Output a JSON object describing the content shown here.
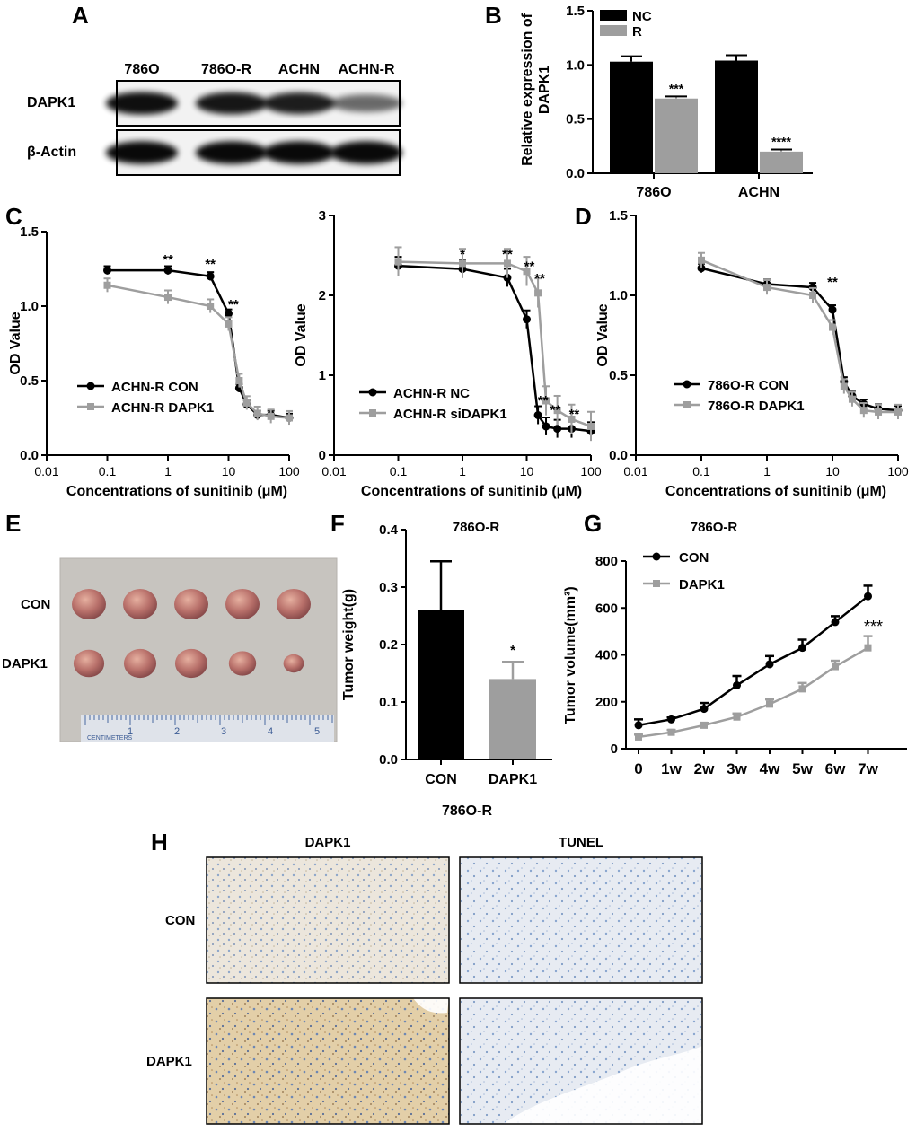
{
  "panels": {
    "A": "A",
    "B": "B",
    "C": "C",
    "D": "D",
    "E": "E",
    "F": "F",
    "G": "G",
    "H": "H"
  },
  "western_blot": {
    "lanes": [
      "786O",
      "786O-R",
      "ACHN",
      "ACHN-R"
    ],
    "rows": [
      {
        "label": "DAPK1",
        "intensity": [
          0.92,
          0.88,
          0.85,
          0.45
        ]
      },
      {
        "label": "β-Actin",
        "intensity": [
          0.95,
          0.95,
          0.95,
          0.95
        ]
      }
    ]
  },
  "tumor_photo": {
    "rows": [
      "CON",
      "DAPK1"
    ],
    "ruler_ticks": [
      "1",
      "2",
      "3",
      "4",
      "5"
    ],
    "ruler_label": "CENTIMETERS",
    "sizes": [
      [
        1.0,
        1.0,
        1.0,
        1.0,
        1.0
      ],
      [
        0.9,
        0.95,
        0.95,
        0.8,
        0.6
      ]
    ]
  },
  "ihc": {
    "title": "786O-R",
    "columns": [
      "DAPK1",
      "TUNEL"
    ],
    "rows": [
      "CON",
      "DAPK1"
    ],
    "stain_colors": {
      "brown": "#c9a46a",
      "blue": "#7f9fc8",
      "background": "#ece7dc"
    }
  },
  "colors": {
    "black": "#000000",
    "gray": "#9e9e9e"
  },
  "chart_data": [
    {
      "id": "B",
      "type": "bar",
      "categories": [
        "786O",
        "ACHN"
      ],
      "series": [
        {
          "name": "NC",
          "values": [
            1.03,
            1.04
          ],
          "errors": [
            0.05,
            0.05
          ],
          "color": "#000000"
        },
        {
          "name": "R",
          "values": [
            0.69,
            0.2
          ],
          "errors": [
            0.02,
            0.02
          ],
          "color": "#9e9e9e"
        }
      ],
      "annotations": [
        {
          "category": "786O",
          "series": "R",
          "text": "***"
        },
        {
          "category": "ACHN",
          "series": "R",
          "text": "****"
        }
      ],
      "ylabel": "Relative expression of DAPK1",
      "ylabel_lines": [
        "Relative expression of",
        "DAPK1"
      ],
      "ylim": [
        0,
        1.5
      ],
      "yticks": [
        0,
        0.5,
        1,
        1.5
      ],
      "ytick_labels": [
        "0.0",
        "0.5",
        "1.0",
        "1.5"
      ],
      "legend": "top-right"
    },
    {
      "id": "C1",
      "type": "line",
      "xscale": "log",
      "xlabel": "Concentrations of sunitinib (μM)",
      "ylabel": "OD Value",
      "xlim": [
        0.01,
        100
      ],
      "ylim": [
        0,
        1.5
      ],
      "xticks": [
        0.01,
        0.1,
        1,
        10,
        100
      ],
      "xtick_labels": [
        "0.01",
        "0.1",
        "1",
        "10",
        "100"
      ],
      "yticks": [
        0,
        0.5,
        1,
        1.5
      ],
      "ytick_labels": [
        "0.0",
        "0.5",
        "1.0",
        "1.5"
      ],
      "series": [
        {
          "name": "ACHN-R CON",
          "color": "#000000",
          "marker": "circle",
          "x": [
            0.1,
            1,
            5,
            10,
            15,
            20,
            30,
            50,
            100
          ],
          "y": [
            1.24,
            1.24,
            1.2,
            0.95,
            0.45,
            0.34,
            0.27,
            0.27,
            0.25
          ]
        },
        {
          "name": "ACHN-R DAPK1",
          "color": "#9e9e9e",
          "marker": "square",
          "x": [
            0.1,
            1,
            5,
            10,
            15,
            20,
            30,
            50,
            100
          ],
          "y": [
            1.14,
            1.06,
            1.0,
            0.88,
            0.5,
            0.35,
            0.28,
            0.26,
            0.25
          ]
        }
      ],
      "annotations": [
        {
          "x": 1,
          "y": 1.33,
          "text": "**"
        },
        {
          "x": 5,
          "y": 1.3,
          "text": "**"
        },
        {
          "x": 12,
          "y": 1.03,
          "text": "**"
        }
      ],
      "legend": "bottom-left"
    },
    {
      "id": "C2",
      "type": "line",
      "xscale": "log",
      "xlabel": "Concentrations of sunitinib (μM)",
      "ylabel": "OD Value",
      "xlim": [
        0.01,
        100
      ],
      "ylim": [
        0,
        3
      ],
      "xticks": [
        0.01,
        0.1,
        1,
        10,
        100
      ],
      "xtick_labels": [
        "0.01",
        "0.1",
        "1",
        "10",
        "100"
      ],
      "yticks": [
        0,
        1,
        2,
        3
      ],
      "ytick_labels": [
        "0",
        "1",
        "2",
        "3"
      ],
      "series": [
        {
          "name": "ACHN-R NC",
          "color": "#000000",
          "marker": "circle",
          "x": [
            0.1,
            1,
            5,
            10,
            15,
            20,
            30,
            50,
            100
          ],
          "y": [
            2.37,
            2.33,
            2.22,
            1.7,
            0.5,
            0.36,
            0.33,
            0.33,
            0.3
          ]
        },
        {
          "name": "ACHN-R siDAPK1",
          "color": "#9e9e9e",
          "marker": "square",
          "x": [
            0.1,
            1,
            5,
            10,
            15,
            20,
            30,
            50,
            100
          ],
          "y": [
            2.42,
            2.4,
            2.4,
            2.3,
            2.03,
            0.68,
            0.56,
            0.45,
            0.36
          ]
        }
      ],
      "annotations": [
        {
          "x": 1,
          "y": 2.55,
          "text": "*"
        },
        {
          "x": 5,
          "y": 2.55,
          "text": "**"
        },
        {
          "x": 11,
          "y": 2.4,
          "text": "**"
        },
        {
          "x": 16,
          "y": 2.25,
          "text": "**"
        },
        {
          "x": 18,
          "y": 0.72,
          "text": "**"
        },
        {
          "x": 28,
          "y": 0.6,
          "text": "**"
        },
        {
          "x": 55,
          "y": 0.55,
          "text": "**"
        }
      ],
      "legend": "bottom-left"
    },
    {
      "id": "D",
      "type": "line",
      "xscale": "log",
      "xlabel": "Concentrations of sunitinib (μM)",
      "ylabel": "OD Value",
      "xlim": [
        0.01,
        100
      ],
      "ylim": [
        0,
        1.5
      ],
      "xticks": [
        0.01,
        0.1,
        1,
        10,
        100
      ],
      "xtick_labels": [
        "0.01",
        "0.1",
        "1",
        "10",
        "100"
      ],
      "yticks": [
        0,
        0.5,
        1,
        1.5
      ],
      "ytick_labels": [
        "0.0",
        "0.5",
        "1.0",
        "1.5"
      ],
      "series": [
        {
          "name": "786O-R CON",
          "color": "#000000",
          "marker": "circle",
          "x": [
            0.1,
            1,
            5,
            10,
            15,
            20,
            30,
            50,
            100
          ],
          "y": [
            1.17,
            1.07,
            1.05,
            0.91,
            0.46,
            0.37,
            0.32,
            0.29,
            0.28
          ]
        },
        {
          "name": "786O-R DAPK1",
          "color": "#9e9e9e",
          "marker": "square",
          "x": [
            0.1,
            1,
            5,
            10,
            15,
            20,
            30,
            50,
            100
          ],
          "y": [
            1.22,
            1.05,
            1.0,
            0.8,
            0.43,
            0.35,
            0.28,
            0.27,
            0.27
          ]
        }
      ],
      "annotations": [
        {
          "x": 10,
          "y": 1.1,
          "text": "**"
        }
      ],
      "legend": "bottom-right"
    },
    {
      "id": "F",
      "type": "bar",
      "title": "786O-R",
      "categories": [
        "CON",
        "DAPK1"
      ],
      "values": [
        0.26,
        0.14
      ],
      "errors": [
        0.085,
        0.03
      ],
      "colors": [
        "#000000",
        "#9e9e9e"
      ],
      "annotations": [
        {
          "category": "DAPK1",
          "text": "*"
        }
      ],
      "ylabel": "Tumor weight(g)",
      "ylim": [
        0,
        0.4
      ],
      "yticks": [
        0,
        0.1,
        0.2,
        0.3,
        0.4
      ],
      "ytick_labels": [
        "0.0",
        "0.1",
        "0.2",
        "0.3",
        "0.4"
      ]
    },
    {
      "id": "G",
      "type": "line",
      "title": "786O-R",
      "categories": [
        "0",
        "1w",
        "2w",
        "3w",
        "4w",
        "5w",
        "6w",
        "7w"
      ],
      "ylabel": "Tumor volume(mm³)",
      "ylim": [
        0,
        800
      ],
      "yticks": [
        0,
        200,
        400,
        600,
        800
      ],
      "ytick_labels": [
        "0",
        "200",
        "400",
        "600",
        "800"
      ],
      "series": [
        {
          "name": "CON",
          "color": "#000000",
          "marker": "circle",
          "values": [
            100,
            125,
            170,
            270,
            360,
            430,
            540,
            650
          ],
          "errors": [
            25,
            8,
            25,
            40,
            35,
            35,
            25,
            45
          ]
        },
        {
          "name": "DAPK1",
          "color": "#9e9e9e",
          "marker": "square",
          "values": [
            50,
            70,
            100,
            135,
            190,
            255,
            350,
            430
          ],
          "errors": [
            10,
            10,
            10,
            15,
            20,
            25,
            25,
            50
          ]
        }
      ],
      "annotations": [
        {
          "category": "7w",
          "text": "***"
        }
      ],
      "legend": "top-left"
    }
  ]
}
